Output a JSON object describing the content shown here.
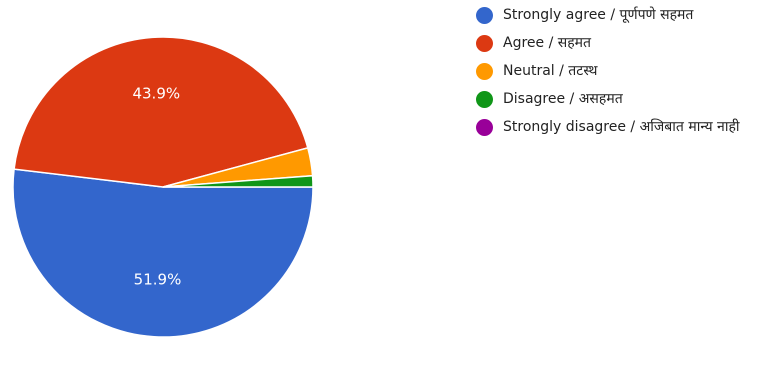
{
  "chart_data": {
    "type": "pie",
    "title": "",
    "slices": [
      {
        "label": "Strongly agree / पूर्णपणे सहमत",
        "value": 51.9,
        "color": "#3366cc",
        "display_label": "51.9%"
      },
      {
        "label": "Agree / सहमत",
        "value": 43.9,
        "color": "#dc3912",
        "display_label": "43.9%"
      },
      {
        "label": "Neutral / तटस्थ",
        "value": 3.0,
        "color": "#ff9900",
        "display_label": ""
      },
      {
        "label": "Disagree / असहमत",
        "value": 1.2,
        "color": "#109618",
        "display_label": ""
      },
      {
        "label": "Strongly disagree / अजिबात मान्य नाही",
        "value": 0.0,
        "color": "#990099",
        "display_label": ""
      }
    ],
    "legend_position": "right"
  }
}
